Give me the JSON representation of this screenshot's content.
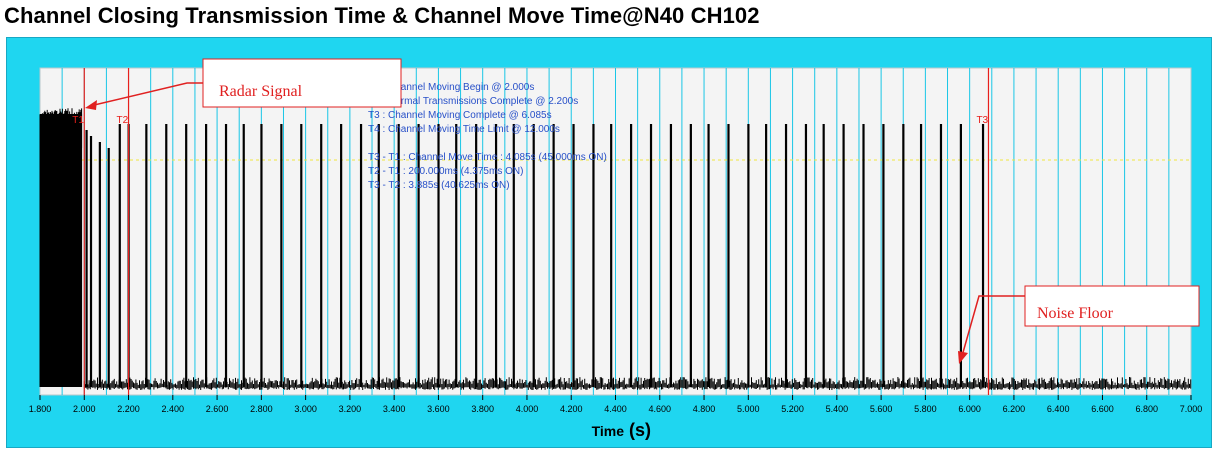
{
  "page": {
    "title": "Channel Closing Transmission Time & Channel Move Time@N40 CH102"
  },
  "chart_data": {
    "type": "line",
    "title": "Channel Closing Transmission Time & Channel Move Time@N40 CH102",
    "xlabel": "Time",
    "xlabel_unit": "(s)",
    "ylabel": "",
    "xlim": [
      1.8,
      7.0
    ],
    "x_ticks": [
      "1.800",
      "2.000",
      "2.200",
      "2.400",
      "2.600",
      "2.800",
      "3.000",
      "3.200",
      "3.400",
      "3.600",
      "3.800",
      "4.000",
      "4.200",
      "4.400",
      "4.600",
      "4.800",
      "5.000",
      "5.200",
      "5.400",
      "5.600",
      "5.800",
      "6.000",
      "6.200",
      "6.400",
      "6.600",
      "6.800",
      "7.000"
    ],
    "grid": "vertical, cyan, at every 0.1 s",
    "threshold_line": "dashed yellow",
    "colors": {
      "frame": "#1fd6f0",
      "plot_bg": "#f4f4f4",
      "grid": "#19c6e6",
      "trace": "#000000",
      "markers": "#e8201c",
      "info_text": "#2850c8",
      "threshold": "#f0e640",
      "axis_text": "#000000"
    },
    "markers": [
      {
        "label": "T1",
        "x": 2.0
      },
      {
        "label": "T2",
        "x": 2.2
      },
      {
        "label": "T3",
        "x": 6.085
      }
    ],
    "info_lines": [
      "T1 : Channel Moving Begin @ 2.000s",
      "T2 : Normal Transmissions Complete @ 2.200s",
      "T3 : Channel Moving Complete @ 6.085s",
      "T4 : Channel Moving Time Limit @ 12.000s",
      "",
      "T3 - T1 : Channel Move Time : 4.085s (45.000ms ON)",
      "T2 - T1 : 200.000ms (4.375ms ON)",
      "T3 - T2 : 3.885s (40.625ms ON)"
    ],
    "annotations": [
      {
        "text": "Radar Signal"
      },
      {
        "text": "Noise Floor"
      }
    ],
    "pulses": {
      "radar_burst": [
        1.8,
        1.99
      ],
      "transmission_pulses_x": [
        2.01,
        2.03,
        2.07,
        2.11,
        2.16,
        2.2,
        2.28,
        2.37,
        2.46,
        2.55,
        2.64,
        2.72,
        2.8,
        2.89,
        2.98,
        3.07,
        3.16,
        3.25,
        3.33,
        3.42,
        3.51,
        3.6,
        3.68,
        3.77,
        3.86,
        3.94,
        4.03,
        4.12,
        4.21,
        4.3,
        4.38,
        4.47,
        4.56,
        4.65,
        4.74,
        4.82,
        4.91,
        5.0,
        5.08,
        5.17,
        5.26,
        5.34,
        5.43,
        5.52,
        5.61,
        5.7,
        5.78,
        5.87,
        5.96,
        6.06
      ]
    }
  }
}
